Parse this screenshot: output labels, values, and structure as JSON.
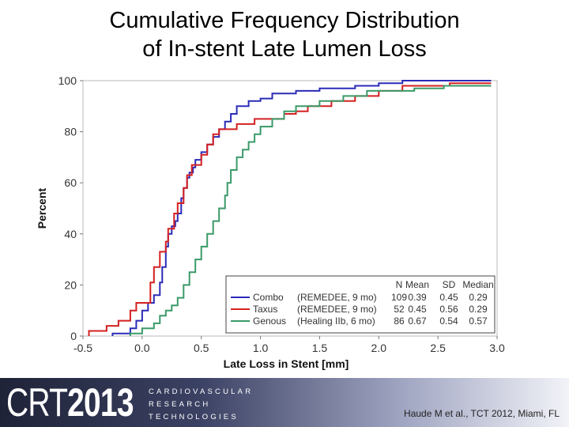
{
  "slide": {
    "title_line1": "Cumulative Frequency Distribution",
    "title_line2": "of In-stent Late Lumen Loss"
  },
  "footer": {
    "logo_prefix": "CRT",
    "logo_year": "2013",
    "org_lines": [
      "CARDIOVASCULAR",
      "RESEARCH",
      "TECHNOLOGIES"
    ],
    "citation": "Haude M et al., TCT 2012, Miami, FL",
    "gradient_colors": [
      "#1f2338",
      "#3b4163",
      "#9ea3c0",
      "#f2f3f8"
    ]
  },
  "chart_data": {
    "type": "line",
    "title": "",
    "xlabel": "Late Loss in Stent [mm]",
    "ylabel": "Percent",
    "xlim": [
      -0.5,
      3.0
    ],
    "ylim": [
      0,
      100
    ],
    "x_ticks": [
      "-0.5",
      "0.0",
      "0.5",
      "1.0",
      "1.5",
      "2.0",
      "2.5",
      "3.0"
    ],
    "y_ticks": [
      "0",
      "20",
      "40",
      "60",
      "80",
      "100"
    ],
    "step": true,
    "legend_position": "bottom-right",
    "legend_header": [
      "N",
      "Mean",
      "SD",
      "Median"
    ],
    "series": [
      {
        "name": "Combo",
        "study": "(REMEDEE, 9 mo)",
        "N": "109",
        "mean": "0.39",
        "sd": "0.45",
        "median": "0.29",
        "color": "#2b2bb8",
        "points": [
          [
            -0.25,
            0
          ],
          [
            -0.25,
            1
          ],
          [
            -0.1,
            1
          ],
          [
            -0.1,
            3
          ],
          [
            -0.05,
            3
          ],
          [
            -0.05,
            6
          ],
          [
            0.0,
            6
          ],
          [
            0.0,
            10
          ],
          [
            0.05,
            10
          ],
          [
            0.05,
            13
          ],
          [
            0.1,
            13
          ],
          [
            0.1,
            16
          ],
          [
            0.15,
            16
          ],
          [
            0.15,
            21
          ],
          [
            0.17,
            21
          ],
          [
            0.17,
            27
          ],
          [
            0.2,
            27
          ],
          [
            0.2,
            35
          ],
          [
            0.22,
            35
          ],
          [
            0.22,
            40
          ],
          [
            0.25,
            40
          ],
          [
            0.25,
            43
          ],
          [
            0.28,
            43
          ],
          [
            0.28,
            45
          ],
          [
            0.3,
            45
          ],
          [
            0.3,
            48
          ],
          [
            0.33,
            48
          ],
          [
            0.33,
            54
          ],
          [
            0.35,
            54
          ],
          [
            0.35,
            58
          ],
          [
            0.38,
            58
          ],
          [
            0.38,
            62
          ],
          [
            0.4,
            62
          ],
          [
            0.4,
            64
          ],
          [
            0.43,
            64
          ],
          [
            0.43,
            66
          ],
          [
            0.45,
            66
          ],
          [
            0.45,
            69
          ],
          [
            0.5,
            69
          ],
          [
            0.5,
            72
          ],
          [
            0.55,
            72
          ],
          [
            0.55,
            75
          ],
          [
            0.6,
            75
          ],
          [
            0.6,
            78
          ],
          [
            0.65,
            78
          ],
          [
            0.65,
            81
          ],
          [
            0.7,
            81
          ],
          [
            0.7,
            84
          ],
          [
            0.75,
            84
          ],
          [
            0.75,
            87
          ],
          [
            0.8,
            87
          ],
          [
            0.8,
            90
          ],
          [
            0.9,
            90
          ],
          [
            0.9,
            92
          ],
          [
            1.0,
            92
          ],
          [
            1.0,
            93
          ],
          [
            1.1,
            93
          ],
          [
            1.1,
            95
          ],
          [
            1.3,
            95
          ],
          [
            1.3,
            96
          ],
          [
            1.5,
            96
          ],
          [
            1.5,
            97
          ],
          [
            1.8,
            97
          ],
          [
            1.8,
            98
          ],
          [
            2.0,
            98
          ],
          [
            2.0,
            99
          ],
          [
            2.2,
            99
          ],
          [
            2.2,
            100
          ],
          [
            2.95,
            100
          ]
        ]
      },
      {
        "name": "Taxus",
        "study": "(REMEDEE, 9 mo)",
        "N": "52",
        "mean": "0.45",
        "sd": "0.56",
        "median": "0.29",
        "color": "#d42020",
        "points": [
          [
            -0.45,
            0
          ],
          [
            -0.45,
            2
          ],
          [
            -0.3,
            2
          ],
          [
            -0.3,
            4
          ],
          [
            -0.2,
            4
          ],
          [
            -0.2,
            6
          ],
          [
            -0.1,
            6
          ],
          [
            -0.1,
            10
          ],
          [
            -0.05,
            10
          ],
          [
            -0.05,
            13
          ],
          [
            0.07,
            13
          ],
          [
            0.07,
            21
          ],
          [
            0.1,
            21
          ],
          [
            0.1,
            27
          ],
          [
            0.15,
            27
          ],
          [
            0.15,
            33
          ],
          [
            0.2,
            33
          ],
          [
            0.2,
            37
          ],
          [
            0.22,
            37
          ],
          [
            0.22,
            42
          ],
          [
            0.27,
            42
          ],
          [
            0.27,
            48
          ],
          [
            0.3,
            48
          ],
          [
            0.3,
            52
          ],
          [
            0.35,
            52
          ],
          [
            0.35,
            58
          ],
          [
            0.38,
            58
          ],
          [
            0.38,
            63
          ],
          [
            0.42,
            63
          ],
          [
            0.42,
            67
          ],
          [
            0.5,
            67
          ],
          [
            0.5,
            71
          ],
          [
            0.55,
            71
          ],
          [
            0.55,
            75
          ],
          [
            0.6,
            75
          ],
          [
            0.6,
            79
          ],
          [
            0.65,
            79
          ],
          [
            0.65,
            81
          ],
          [
            0.8,
            81
          ],
          [
            0.8,
            83
          ],
          [
            0.95,
            83
          ],
          [
            0.95,
            85
          ],
          [
            1.2,
            85
          ],
          [
            1.2,
            87
          ],
          [
            1.3,
            87
          ],
          [
            1.3,
            88
          ],
          [
            1.4,
            88
          ],
          [
            1.4,
            90
          ],
          [
            1.6,
            90
          ],
          [
            1.6,
            92
          ],
          [
            1.8,
            92
          ],
          [
            1.8,
            94
          ],
          [
            2.0,
            94
          ],
          [
            2.0,
            96
          ],
          [
            2.2,
            96
          ],
          [
            2.2,
            98
          ],
          [
            2.6,
            98
          ],
          [
            2.6,
            99
          ],
          [
            2.95,
            99
          ]
        ]
      },
      {
        "name": "Genous",
        "study": "(Healing IIb, 6 mo)",
        "N": "86",
        "mean": "0.67",
        "sd": "0.54",
        "median": "0.57",
        "color": "#3a9a68",
        "points": [
          [
            -0.1,
            0
          ],
          [
            -0.1,
            1
          ],
          [
            0.0,
            1
          ],
          [
            0.0,
            3
          ],
          [
            0.1,
            3
          ],
          [
            0.1,
            5
          ],
          [
            0.15,
            5
          ],
          [
            0.15,
            8
          ],
          [
            0.2,
            8
          ],
          [
            0.2,
            10
          ],
          [
            0.25,
            10
          ],
          [
            0.25,
            12
          ],
          [
            0.3,
            12
          ],
          [
            0.3,
            15
          ],
          [
            0.35,
            15
          ],
          [
            0.35,
            20
          ],
          [
            0.4,
            20
          ],
          [
            0.4,
            25
          ],
          [
            0.45,
            25
          ],
          [
            0.45,
            30
          ],
          [
            0.5,
            30
          ],
          [
            0.5,
            35
          ],
          [
            0.55,
            35
          ],
          [
            0.55,
            40
          ],
          [
            0.6,
            40
          ],
          [
            0.6,
            45
          ],
          [
            0.65,
            45
          ],
          [
            0.65,
            50
          ],
          [
            0.7,
            50
          ],
          [
            0.7,
            55
          ],
          [
            0.72,
            55
          ],
          [
            0.72,
            60
          ],
          [
            0.75,
            60
          ],
          [
            0.75,
            65
          ],
          [
            0.8,
            65
          ],
          [
            0.8,
            70
          ],
          [
            0.85,
            70
          ],
          [
            0.85,
            73
          ],
          [
            0.9,
            73
          ],
          [
            0.9,
            76
          ],
          [
            0.95,
            76
          ],
          [
            0.95,
            79
          ],
          [
            1.0,
            79
          ],
          [
            1.0,
            82
          ],
          [
            1.1,
            82
          ],
          [
            1.1,
            85
          ],
          [
            1.2,
            85
          ],
          [
            1.2,
            88
          ],
          [
            1.3,
            88
          ],
          [
            1.3,
            90
          ],
          [
            1.5,
            90
          ],
          [
            1.5,
            92
          ],
          [
            1.7,
            92
          ],
          [
            1.7,
            94
          ],
          [
            1.9,
            94
          ],
          [
            1.9,
            96
          ],
          [
            2.3,
            96
          ],
          [
            2.3,
            97
          ],
          [
            2.55,
            97
          ],
          [
            2.55,
            98
          ],
          [
            2.95,
            98
          ]
        ]
      }
    ]
  }
}
